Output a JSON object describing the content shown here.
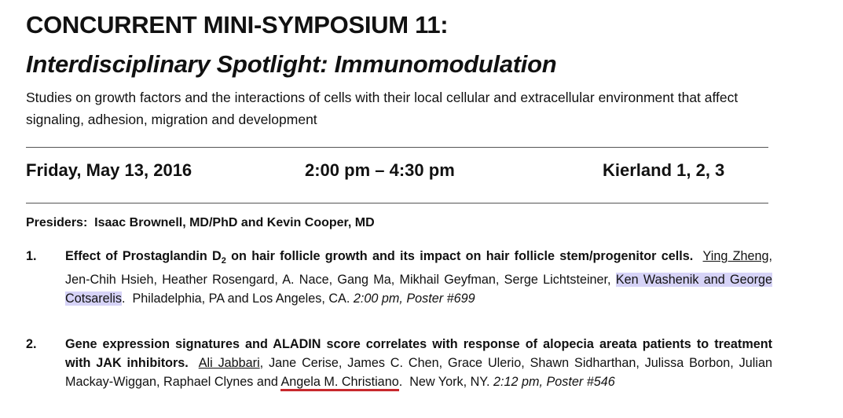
{
  "header": {
    "title": "CONCURRENT MINI-SYMPOSIUM 11:",
    "subtitle": "Interdisciplinary Spotlight: Immunomodulation",
    "description": "Studies on growth factors and the interactions of cells with their local cellular and extracellular environment that affect signaling, adhesion, migration and development"
  },
  "session": {
    "date": "Friday, May 13, 2016",
    "time": "2:00 pm – 4:30 pm",
    "location": "Kierland 1, 2, 3"
  },
  "presiders": {
    "label": "Presiders:",
    "names": "Isaac Brownell, MD/PhD and Kevin Cooper, MD"
  },
  "abstracts": [
    {
      "number": "1.",
      "title": [
        "Effect of Prostaglandin D",
        "2",
        " on hair follicle growth and its impact on hair follicle stem/progenitor cells."
      ],
      "authors": [
        {
          "text": "Ying Zheng",
          "mark": "underline"
        },
        {
          "text": ", Jen-Chih Hsieh, Heather Rosengard, A. Nace, Gang Ma, Mikhail Geyfman, Serge Lichtsteiner, ",
          "mark": "none"
        },
        {
          "text": "Ken Washenik and George Cotsarelis",
          "mark": "highlight"
        },
        {
          "text": ".",
          "mark": "none"
        }
      ],
      "place": "Philadelphia, PA and Los Angeles, CA.",
      "schedule": "2:00 pm, Poster #699"
    },
    {
      "number": "2.",
      "title": [
        "Gene expression signatures and ALADIN score correlates with response of alopecia areata patients to treatment with JAK inhibitors."
      ],
      "authors": [
        {
          "text": "Ali Jabbari",
          "mark": "underline"
        },
        {
          "text": ", Jane Cerise, James C. Chen, Grace Ulerio, Shawn Sidharthan, Julissa Borbon, Julian Mackay-Wiggan, Raphael Clynes and ",
          "mark": "none"
        },
        {
          "text": "Angela M. Christiano",
          "mark": "red-underline"
        },
        {
          "text": ".",
          "mark": "none"
        }
      ],
      "place": "New York, NY.",
      "schedule": "2:12 pm, Poster #546"
    }
  ]
}
